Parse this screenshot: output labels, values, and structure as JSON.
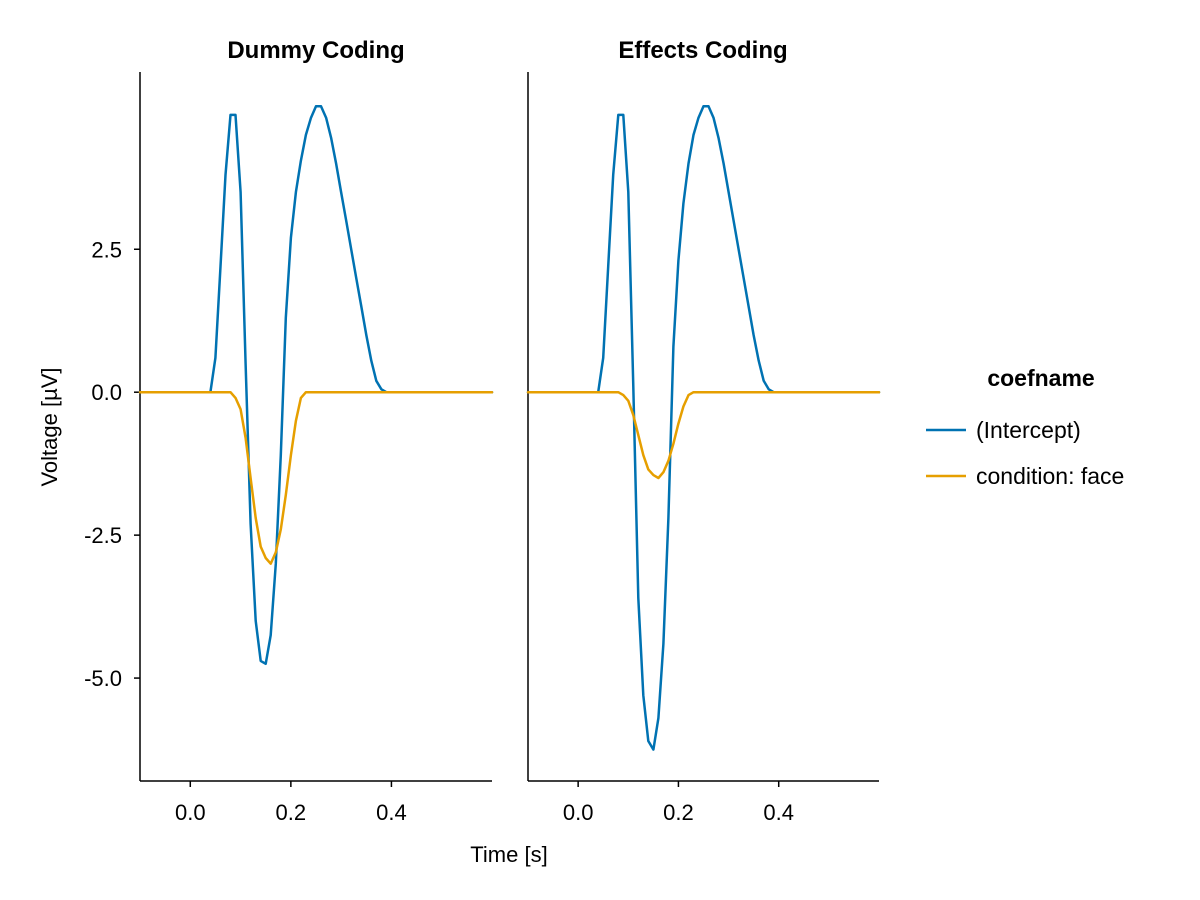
{
  "chart_data": [
    {
      "type": "line",
      "title": "Dummy Coding",
      "xlim": [
        -0.1,
        0.6
      ],
      "ylim": [
        -6.8,
        5.6
      ],
      "xticks": [
        0.0,
        0.2,
        0.4
      ],
      "xtick_labels": [
        "0.0",
        "0.2",
        "0.4"
      ],
      "yticks": [
        2.5,
        0.0,
        -2.5,
        -5.0
      ],
      "ytick_labels": [
        "2.5",
        "0.0",
        "-2.5",
        "-5.0"
      ],
      "series": [
        {
          "name": "(Intercept)",
          "color": "#0072b2",
          "x": [
            -0.1,
            0.04,
            0.05,
            0.06,
            0.07,
            0.08,
            0.09,
            0.1,
            0.11,
            0.12,
            0.13,
            0.14,
            0.15,
            0.16,
            0.17,
            0.18,
            0.19,
            0.2,
            0.21,
            0.22,
            0.23,
            0.24,
            0.25,
            0.26,
            0.27,
            0.28,
            0.29,
            0.3,
            0.31,
            0.32,
            0.33,
            0.34,
            0.35,
            0.36,
            0.37,
            0.38,
            0.39,
            0.4,
            0.41,
            0.42,
            0.43,
            0.6
          ],
          "y": [
            0.0,
            0.0,
            0.6,
            2.2,
            3.8,
            4.85,
            4.85,
            3.5,
            0.5,
            -2.3,
            -4.0,
            -4.7,
            -4.75,
            -4.25,
            -3.0,
            -1.1,
            1.3,
            2.7,
            3.5,
            4.05,
            4.5,
            4.8,
            5.0,
            5.0,
            4.8,
            4.45,
            4.0,
            3.5,
            3.0,
            2.5,
            2.0,
            1.5,
            1.0,
            0.55,
            0.2,
            0.05,
            0.0,
            0.0,
            0.0,
            0.0,
            0.0,
            0.0
          ]
        },
        {
          "name": "condition: face",
          "color": "#e69f00",
          "x": [
            -0.1,
            0.08,
            0.09,
            0.1,
            0.11,
            0.12,
            0.13,
            0.14,
            0.15,
            0.16,
            0.17,
            0.18,
            0.19,
            0.2,
            0.21,
            0.22,
            0.23,
            0.24,
            0.6
          ],
          "y": [
            0.0,
            0.0,
            -0.1,
            -0.3,
            -0.8,
            -1.5,
            -2.2,
            -2.7,
            -2.9,
            -3.0,
            -2.8,
            -2.4,
            -1.8,
            -1.1,
            -0.5,
            -0.1,
            0.0,
            0.0,
            0.0
          ]
        }
      ]
    },
    {
      "type": "line",
      "title": "Effects Coding",
      "xlim": [
        -0.1,
        0.6
      ],
      "ylim": [
        -6.8,
        5.6
      ],
      "xticks": [
        0.0,
        0.2,
        0.4
      ],
      "xtick_labels": [
        "0.0",
        "0.2",
        "0.4"
      ],
      "series": [
        {
          "name": "(Intercept)",
          "color": "#0072b2",
          "x": [
            -0.1,
            0.04,
            0.05,
            0.06,
            0.07,
            0.08,
            0.09,
            0.1,
            0.11,
            0.12,
            0.13,
            0.14,
            0.15,
            0.16,
            0.17,
            0.18,
            0.19,
            0.2,
            0.21,
            0.22,
            0.23,
            0.24,
            0.25,
            0.26,
            0.27,
            0.28,
            0.29,
            0.3,
            0.31,
            0.32,
            0.33,
            0.34,
            0.35,
            0.36,
            0.37,
            0.38,
            0.39,
            0.4,
            0.41,
            0.42,
            0.43,
            0.6
          ],
          "y": [
            0.0,
            0.0,
            0.6,
            2.2,
            3.8,
            4.85,
            4.85,
            3.5,
            0.1,
            -3.6,
            -5.3,
            -6.1,
            -6.25,
            -5.7,
            -4.4,
            -2.2,
            0.8,
            2.3,
            3.3,
            4.0,
            4.5,
            4.8,
            5.0,
            5.0,
            4.8,
            4.45,
            4.0,
            3.5,
            3.0,
            2.5,
            2.0,
            1.5,
            1.0,
            0.55,
            0.2,
            0.05,
            0.0,
            0.0,
            0.0,
            0.0,
            0.0,
            0.0
          ]
        },
        {
          "name": "condition: face",
          "color": "#e69f00",
          "x": [
            -0.1,
            0.08,
            0.09,
            0.1,
            0.11,
            0.12,
            0.13,
            0.14,
            0.15,
            0.16,
            0.17,
            0.18,
            0.19,
            0.2,
            0.21,
            0.22,
            0.23,
            0.24,
            0.6
          ],
          "y": [
            0.0,
            0.0,
            -0.05,
            -0.15,
            -0.4,
            -0.75,
            -1.1,
            -1.35,
            -1.45,
            -1.5,
            -1.4,
            -1.2,
            -0.9,
            -0.55,
            -0.25,
            -0.05,
            0.0,
            0.0,
            0.0
          ]
        }
      ]
    }
  ],
  "shared": {
    "xlabel": "Time [s]",
    "ylabel": "Voltage [µV]"
  },
  "legend": {
    "title": "coefname",
    "entries": [
      {
        "label": "(Intercept)",
        "color": "#0072b2"
      },
      {
        "label": "condition: face",
        "color": "#e69f00"
      }
    ]
  }
}
